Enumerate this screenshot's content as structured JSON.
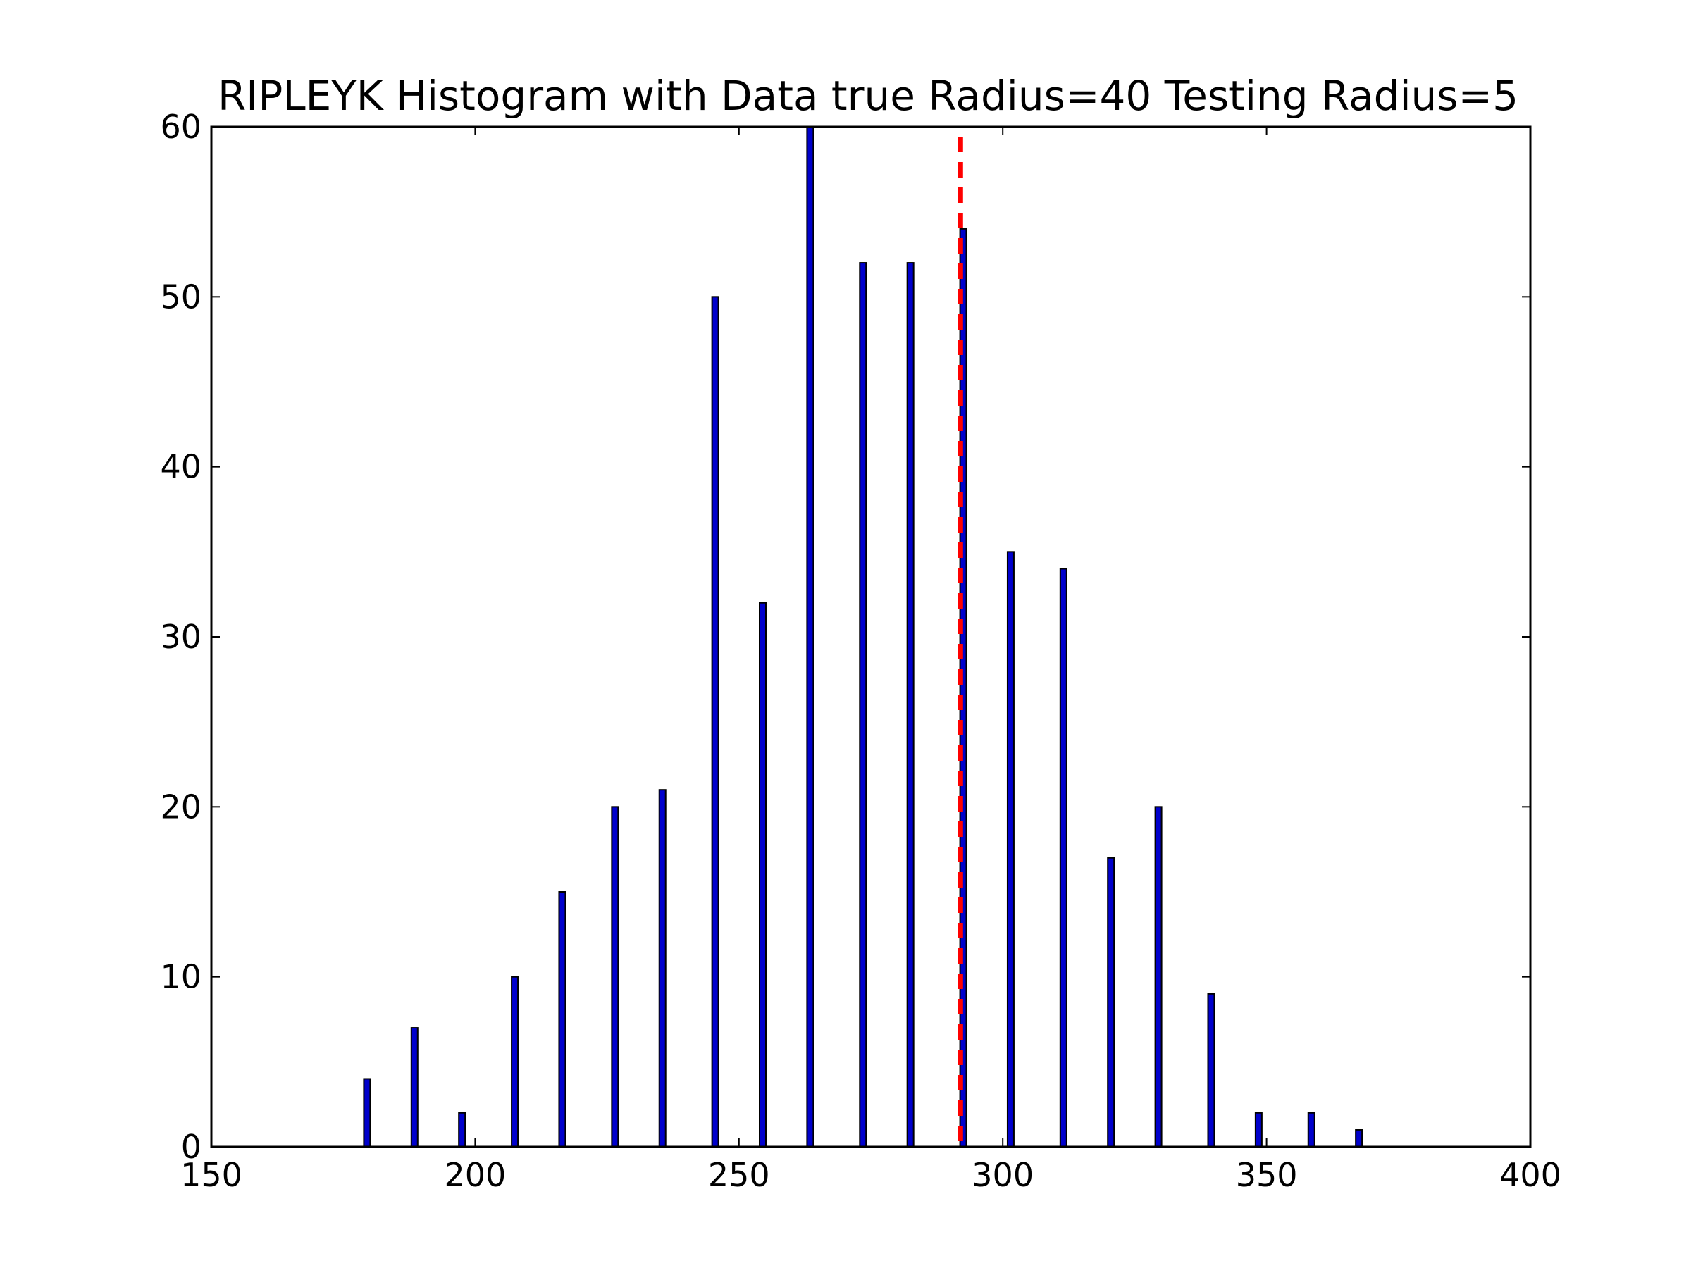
{
  "chart_data": {
    "type": "bar",
    "title": "RIPLEYK Histogram with Data true Radius=40 Testing Radius=5",
    "xlabel": "",
    "ylabel": "",
    "xlim": [
      150,
      400
    ],
    "ylim": [
      0,
      60
    ],
    "xticks": [
      150,
      200,
      250,
      300,
      350,
      400
    ],
    "yticks": [
      0,
      10,
      20,
      30,
      40,
      50,
      60
    ],
    "grid": false,
    "bar_color": "#0000cc",
    "bar_edge_color": "#000000",
    "bar_width": 1.2,
    "bins": [
      {
        "x": 179.5,
        "count": 4
      },
      {
        "x": 188.5,
        "count": 7
      },
      {
        "x": 197.5,
        "count": 2
      },
      {
        "x": 207.5,
        "count": 10
      },
      {
        "x": 216.5,
        "count": 15
      },
      {
        "x": 226.5,
        "count": 20
      },
      {
        "x": 235.5,
        "count": 21
      },
      {
        "x": 245.5,
        "count": 50
      },
      {
        "x": 254.5,
        "count": 32
      },
      {
        "x": 263.5,
        "count": 60
      },
      {
        "x": 273.5,
        "count": 52
      },
      {
        "x": 282.5,
        "count": 52
      },
      {
        "x": 292.5,
        "count": 54
      },
      {
        "x": 301.5,
        "count": 35
      },
      {
        "x": 311.5,
        "count": 34
      },
      {
        "x": 320.5,
        "count": 17
      },
      {
        "x": 329.5,
        "count": 20
      },
      {
        "x": 339.5,
        "count": 9
      },
      {
        "x": 348.5,
        "count": 2
      },
      {
        "x": 358.5,
        "count": 2
      },
      {
        "x": 367.5,
        "count": 1
      }
    ],
    "reference_line": {
      "x": 292,
      "color": "#ff0000",
      "style": "dashed"
    }
  }
}
